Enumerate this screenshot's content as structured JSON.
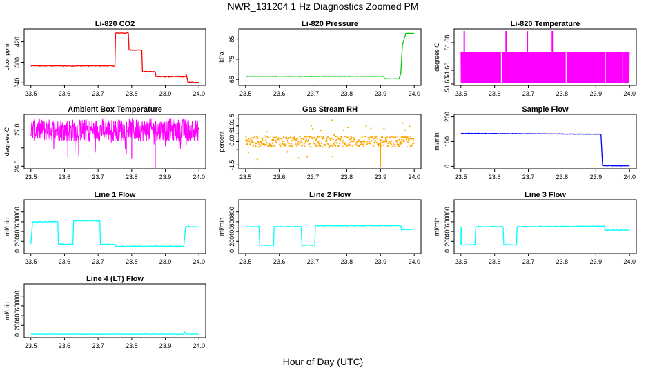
{
  "page": {
    "title": "NWR_131204  1 Hz Diagnostics Zoomed PM",
    "xlabel": "Hour of Day (UTC)"
  },
  "colors": {
    "red": "#ff0000",
    "green": "#00cc00",
    "magenta": "#ff00ff",
    "orange": "#ffa500",
    "blue": "#0000ff",
    "cyan": "#00ffff"
  },
  "chart_data": [
    {
      "type": "line",
      "title": "Li-820 CO2",
      "ylabel": "Licor ppm",
      "color": "#ff0000",
      "xlim": [
        23.5,
        24.0
      ],
      "ylim": [
        335,
        445
      ],
      "xticks": [
        "23.5",
        "23.6",
        "23.7",
        "23.8",
        "23.9",
        "24.0"
      ],
      "yticks": [
        340,
        380,
        420
      ],
      "series": [
        {
          "x": [
            23.5,
            23.75,
            23.752,
            23.79,
            23.792,
            23.83,
            23.832,
            23.87,
            23.872,
            23.96,
            23.962,
            23.965,
            23.967,
            24.0
          ],
          "values": [
            373,
            373,
            437,
            437,
            404,
            404,
            362,
            362,
            352,
            352,
            357,
            349,
            341,
            341
          ]
        }
      ],
      "noise": 0.8
    },
    {
      "type": "line",
      "title": "Li-820 Pressure",
      "ylabel": "kPa",
      "color": "#00cc00",
      "xlim": [
        23.5,
        24.0
      ],
      "ylim": [
        62,
        90
      ],
      "xticks": [
        "23.5",
        "23.6",
        "23.7",
        "23.8",
        "23.9",
        "24.0"
      ],
      "yticks": [
        65,
        75,
        85
      ],
      "series": [
        {
          "x": [
            23.5,
            23.91,
            23.912,
            23.955,
            23.96,
            23.965,
            23.975,
            24.0
          ],
          "values": [
            66.5,
            66.5,
            65.3,
            65.3,
            68,
            82,
            87.8,
            87.8
          ]
        }
      ],
      "noise": 0.1
    },
    {
      "type": "line",
      "title": "Li-820 Temperature",
      "ylabel": "degrees C",
      "color": "#ff00ff",
      "xlim": [
        23.5,
        24.0
      ],
      "ylim": [
        51.649,
        51.69
      ],
      "xticks": [
        "23.5",
        "23.6",
        "23.7",
        "23.8",
        "23.9",
        "24.0"
      ],
      "yticks": [
        51.65,
        51.66,
        51.68
      ],
      "band": [
        51.6505,
        51.6735
      ],
      "spikes": [
        23.51,
        23.634,
        23.697,
        23.771
      ],
      "spike_top": 51.6885,
      "gaps": [
        23.62,
        23.812,
        23.928,
        23.98
      ]
    },
    {
      "type": "line",
      "title": "Ambient Box Temperature",
      "ylabel": "degrees C",
      "color": "#ff00ff",
      "xlim": [
        23.5,
        24.0
      ],
      "ylim": [
        25.93,
        27.42
      ],
      "xticks": [
        "23.5",
        "23.6",
        "23.7",
        "23.8",
        "23.9",
        "24.0"
      ],
      "yticks": [
        26.0,
        26.5,
        27.0
      ],
      "ytick_labels": [
        "26.0",
        "",
        "27.0"
      ],
      "band": [
        26.68,
        27.3
      ],
      "noise": 0.32,
      "dips": [
        [
          23.8,
          26.2
        ],
        [
          23.87,
          25.95
        ],
        [
          23.61,
          26.25
        ]
      ]
    },
    {
      "type": "scatter",
      "title": "Gas Stream RH",
      "ylabel": "percent",
      "color": "#ffa500",
      "xlim": [
        23.5,
        24.0
      ],
      "ylim": [
        -1.75,
        1.75
      ],
      "xticks": [
        "23.5",
        "23.6",
        "23.7",
        "23.8",
        "23.9",
        "24.0"
      ],
      "yticks": [
        -1.5,
        -0.5,
        0.0,
        0.5,
        1.0,
        1.5
      ],
      "ytick_labels": [
        "-1.5",
        "",
        "0.0",
        "0.5",
        "1.0",
        "1.5"
      ],
      "band": [
        -0.35,
        0.35
      ],
      "noise": 0.6,
      "outlier": [
        23.9,
        -1.65
      ]
    },
    {
      "type": "line",
      "title": "Sample Flow",
      "ylabel": "ml/min",
      "color": "#0000ff",
      "xlim": [
        23.5,
        24.0
      ],
      "ylim": [
        -10,
        210
      ],
      "xticks": [
        "23.5",
        "23.6",
        "23.7",
        "23.8",
        "23.9",
        "24.0"
      ],
      "yticks": [
        0,
        100,
        200
      ],
      "series": [
        {
          "x": [
            23.5,
            23.915,
            23.92,
            24.0
          ],
          "values": [
            133,
            130,
            2,
            2
          ]
        }
      ],
      "noise": 1
    },
    {
      "type": "line",
      "title": "Line 1 Flow",
      "ylabel": "ml/min",
      "color": "#00ffff",
      "xlim": [
        23.5,
        24.0
      ],
      "ylim": [
        -50,
        1050
      ],
      "xticks": [
        "23.5",
        "23.6",
        "23.7",
        "23.8",
        "23.9",
        "24.0"
      ],
      "yticks": [
        0,
        200,
        400,
        600,
        800
      ],
      "series": [
        {
          "x": [
            23.5,
            23.505,
            23.58,
            23.582,
            23.625,
            23.627,
            23.705,
            23.707,
            23.75,
            23.752,
            23.955,
            23.96,
            24.0
          ],
          "values": [
            150,
            600,
            600,
            140,
            140,
            620,
            620,
            140,
            140,
            100,
            100,
            500,
            500
          ]
        }
      ],
      "noise": 8
    },
    {
      "type": "line",
      "title": "Line 2 Flow",
      "ylabel": "ml/min",
      "color": "#00ffff",
      "xlim": [
        23.5,
        24.0
      ],
      "ylim": [
        -50,
        1050
      ],
      "xticks": [
        "23.5",
        "23.6",
        "23.7",
        "23.8",
        "23.9",
        "24.0"
      ],
      "yticks": [
        0,
        200,
        400,
        600,
        800
      ],
      "series": [
        {
          "x": [
            23.5,
            23.54,
            23.542,
            23.583,
            23.585,
            23.665,
            23.667,
            23.705,
            23.707,
            23.96,
            23.962,
            24.0
          ],
          "values": [
            500,
            500,
            120,
            120,
            500,
            500,
            120,
            120,
            520,
            520,
            440,
            440
          ]
        }
      ],
      "noise": 8
    },
    {
      "type": "line",
      "title": "Line 3 Flow",
      "ylabel": "ml/min",
      "color": "#00ffff",
      "xlim": [
        23.5,
        24.0
      ],
      "ylim": [
        -50,
        1050
      ],
      "xticks": [
        "23.5",
        "23.6",
        "23.7",
        "23.8",
        "23.9",
        "24.0"
      ],
      "yticks": [
        0,
        200,
        400,
        600,
        800
      ],
      "series": [
        {
          "x": [
            23.5,
            23.501,
            23.502,
            23.542,
            23.544,
            23.625,
            23.627,
            23.665,
            23.667,
            23.925,
            23.927,
            24.0
          ],
          "values": [
            130,
            500,
            130,
            130,
            500,
            500,
            130,
            130,
            500,
            510,
            430,
            430
          ]
        }
      ],
      "noise": 8
    },
    {
      "type": "line",
      "title": "Line 4 (LT) Flow",
      "ylabel": "ml/min",
      "color": "#00ffff",
      "xlim": [
        23.5,
        24.0
      ],
      "ylim": [
        -50,
        1050
      ],
      "xticks": [
        "23.5",
        "23.6",
        "23.7",
        "23.8",
        "23.9",
        "24.0"
      ],
      "yticks": [
        0,
        200,
        400,
        600,
        800
      ],
      "series": [
        {
          "x": [
            23.5,
            23.955,
            23.958,
            23.962,
            24.0
          ],
          "values": [
            20,
            20,
            55,
            20,
            20
          ]
        }
      ],
      "noise": 3
    }
  ]
}
